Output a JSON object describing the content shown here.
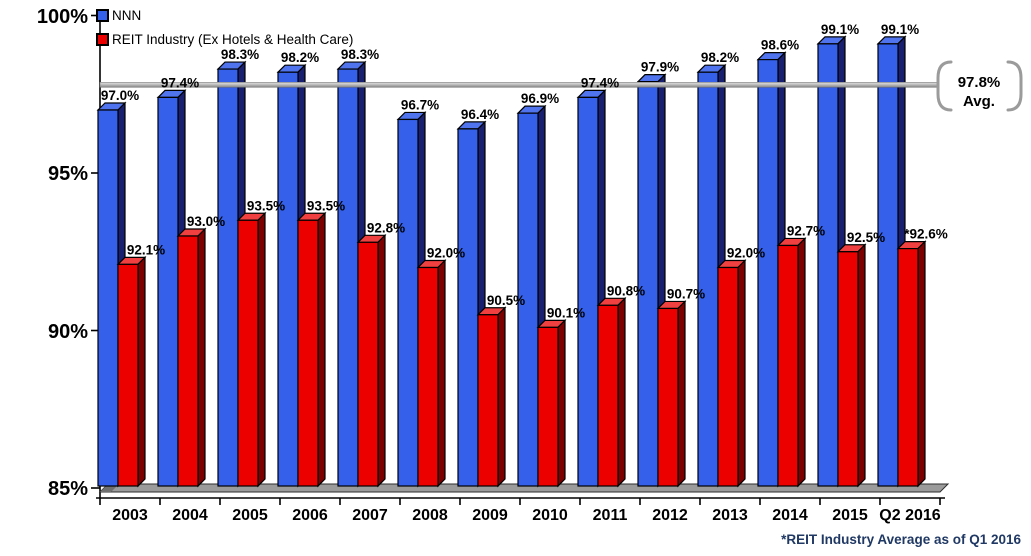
{
  "legend": {
    "items": [
      {
        "label": "NNN"
      },
      {
        "label": "REIT Industry (Ex Hotels & Health Care)"
      }
    ]
  },
  "footnote": "*REIT Industry Average as of Q1 2016",
  "avg_callout": {
    "line1": "97.8%",
    "line2": "Avg."
  },
  "colors": {
    "nnn_face": "#3560EA",
    "nnn_top": "#4F74EE",
    "nnn_side": "#1A2070",
    "reit_face": "#EC0000",
    "reit_top": "#F04040",
    "reit_side": "#7D0000",
    "avg_line": "#9B9B9B",
    "floor": "#9B9B9B",
    "axis": "#000000",
    "footnote_text": "#1F3864"
  },
  "chart_data": {
    "type": "bar",
    "title": "",
    "xlabel": "",
    "ylabel": "",
    "categories": [
      "2003",
      "2004",
      "2005",
      "2006",
      "2007",
      "2008",
      "2009",
      "2010",
      "2011",
      "2012",
      "2013",
      "2014",
      "2015",
      "Q2 2016"
    ],
    "series": [
      {
        "name": "NNN",
        "color": "#3560EA",
        "values": [
          97.0,
          97.4,
          98.3,
          98.2,
          98.3,
          96.7,
          96.4,
          96.9,
          97.4,
          97.9,
          98.2,
          98.6,
          99.1,
          99.1
        ],
        "labels": [
          "97.0%",
          "97.4%",
          "98.3%",
          "98.2%",
          "98.3%",
          "96.7%",
          "96.4%",
          "96.9%",
          "97.4%",
          "97.9%",
          "98.2%",
          "98.6%",
          "99.1%",
          "99.1%"
        ]
      },
      {
        "name": "REIT Industry (Ex Hotels & Health Care)",
        "color": "#EC0000",
        "values": [
          92.1,
          93.0,
          93.5,
          93.5,
          92.8,
          92.0,
          90.5,
          90.1,
          90.8,
          90.7,
          92.0,
          92.7,
          92.5,
          92.6
        ],
        "labels": [
          "92.1%",
          "93.0%",
          "93.5%",
          "93.5%",
          "92.8%",
          "92.0%",
          "90.5%",
          "90.1%",
          "90.8%",
          "90.7%",
          "92.0%",
          "92.7%",
          "92.5%",
          "*92.6%"
        ]
      }
    ],
    "average_line": {
      "value": 97.8,
      "label": "97.8% Avg."
    },
    "ylim": [
      85,
      100
    ],
    "yticks": [
      {
        "v": 100,
        "label": "100%"
      },
      {
        "v": 95,
        "label": "95%"
      },
      {
        "v": 90,
        "label": "90%"
      },
      {
        "v": 85,
        "label": "85%"
      }
    ],
    "legend_position": "top-left",
    "grid": false
  }
}
